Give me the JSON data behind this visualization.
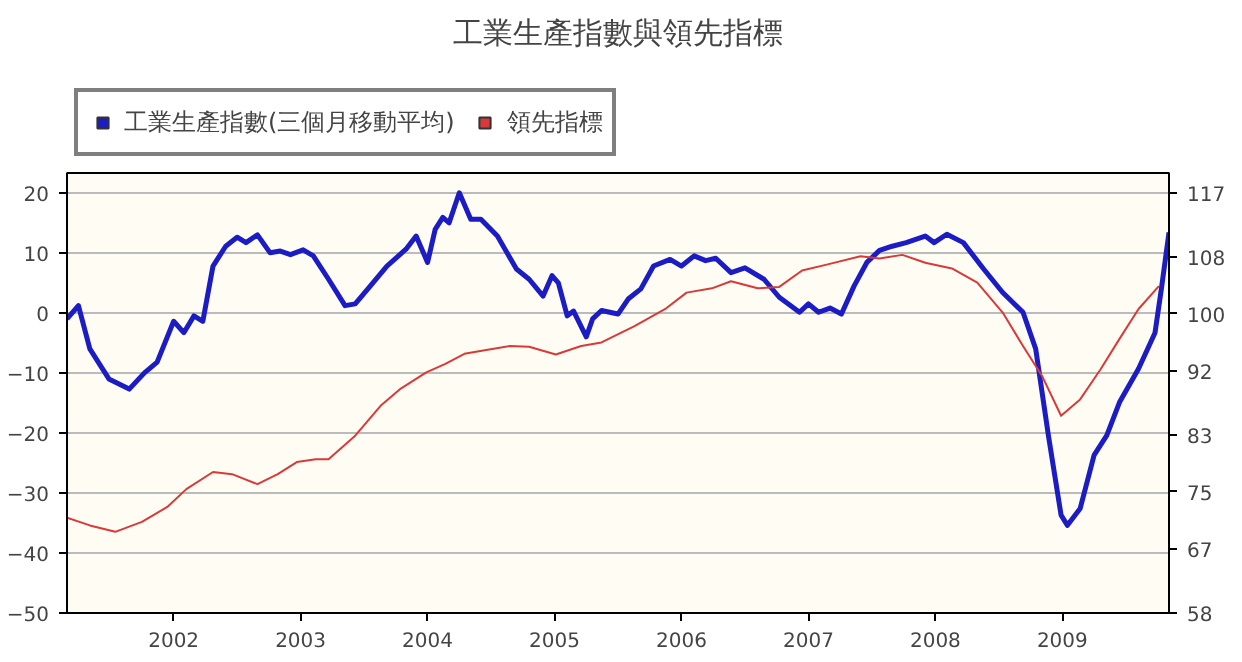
{
  "chart_data": {
    "type": "line",
    "title": "工業生產指數與領先指標",
    "xlim": [
      2001.16,
      2009.84
    ],
    "xticks": [
      2002,
      2003,
      2004,
      2005,
      2006,
      2007,
      2008,
      2009
    ],
    "ylim": [
      -50,
      23.3
    ],
    "yticks": [
      -50,
      -40,
      -30,
      -20,
      -10,
      0,
      10,
      20
    ],
    "y2lim": [
      58,
      119.8
    ],
    "y2ticks": [
      58,
      67,
      75,
      83,
      92,
      100,
      108,
      117
    ],
    "grid": "y",
    "legend": "top left",
    "line_style": "solid",
    "series": [
      {
        "name": "工業生產指數(三個月移動平均)",
        "color": "#1c1cc4",
        "x": [
          2001.16,
          2001.25,
          2001.34,
          2001.49,
          2001.65,
          2001.77,
          2001.87,
          2002.0,
          2002.08,
          2002.16,
          2002.23,
          2002.31,
          2002.41,
          2002.5,
          2002.57,
          2002.66,
          2002.76,
          2002.84,
          2002.92,
          2003.02,
          2003.1,
          2003.22,
          2003.35,
          2003.43,
          2003.53,
          2003.68,
          2003.83,
          2003.91,
          2004.0,
          2004.06,
          2004.12,
          2004.17,
          2004.25,
          2004.34,
          2004.42,
          2004.55,
          2004.7,
          2004.8,
          2004.91,
          2004.98,
          2005.03,
          2005.1,
          2005.15,
          2005.25,
          2005.3,
          2005.37,
          2005.5,
          2005.58,
          2005.68,
          2005.78,
          2005.91,
          2006.0,
          2006.1,
          2006.19,
          2006.27,
          2006.39,
          2006.5,
          2006.65,
          2006.77,
          2006.93,
          2007.0,
          2007.08,
          2007.17,
          2007.26,
          2007.36,
          2007.46,
          2007.56,
          2007.66,
          2007.77,
          2007.92,
          2007.99,
          2008.09,
          2008.22,
          2008.38,
          2008.53,
          2008.69,
          2008.79,
          2008.89,
          2008.99,
          2009.04,
          2009.14,
          2009.25,
          2009.35,
          2009.45,
          2009.6,
          2009.73,
          2009.78,
          2009.84
        ],
        "values": [
          -1,
          1.2,
          -6,
          -11,
          -12.7,
          -10,
          -8.2,
          -1.4,
          -3.3,
          -0.5,
          -1.4,
          7.8,
          11.1,
          12.6,
          11.7,
          13,
          10,
          10.3,
          9.7,
          10.5,
          9.5,
          5.6,
          1.2,
          1.5,
          4,
          7.8,
          10.6,
          12.8,
          8.4,
          13.9,
          15.9,
          15,
          20,
          15.6,
          15.6,
          12.8,
          7.3,
          5.6,
          2.8,
          6.2,
          5,
          -0.5,
          0.3,
          -4,
          -1,
          0.4,
          -0.2,
          2.3,
          4,
          7.8,
          8.9,
          7.8,
          9.5,
          8.7,
          9.1,
          6.7,
          7.5,
          5.6,
          2.6,
          0.1,
          1.5,
          0.1,
          0.8,
          -0.2,
          4.5,
          8.4,
          10.4,
          11.1,
          11.7,
          12.8,
          11.7,
          13.1,
          11.7,
          7.3,
          3.4,
          0.1,
          -6,
          -20.4,
          -33.7,
          -35.4,
          -32.6,
          -23.7,
          -20.4,
          -14.9,
          -9.3,
          -3.3,
          4,
          13.4
        ]
      },
      {
        "name": "領先指標",
        "color": "#d83a3a",
        "axis": "y2",
        "x": [
          2001.16,
          2001.34,
          2001.54,
          2001.75,
          2001.95,
          2002.1,
          2002.31,
          2002.46,
          2002.66,
          2002.82,
          2002.97,
          2003.12,
          2003.22,
          2003.43,
          2003.63,
          2003.78,
          2003.99,
          2004.14,
          2004.29,
          2004.45,
          2004.65,
          2004.8,
          2005.01,
          2005.21,
          2005.37,
          2005.63,
          2005.88,
          2006.04,
          2006.24,
          2006.39,
          2006.6,
          2006.77,
          2006.95,
          2007.16,
          2007.41,
          2007.56,
          2007.74,
          2007.92,
          2008.13,
          2008.33,
          2008.53,
          2008.69,
          2008.84,
          2008.99,
          2009.14,
          2009.3,
          2009.45,
          2009.6,
          2009.76
        ],
        "values": [
          71.4,
          70.3,
          69.4,
          70.8,
          72.9,
          75.4,
          77.8,
          77.5,
          76.1,
          77.5,
          79.2,
          79.6,
          79.6,
          82.9,
          87.1,
          89.4,
          91.8,
          93.0,
          94.4,
          94.9,
          95.5,
          95.4,
          94.3,
          95.5,
          96.0,
          98.3,
          100.8,
          103.0,
          103.6,
          104.6,
          103.6,
          103.8,
          106.1,
          107.0,
          108.1,
          107.8,
          108.3,
          107.2,
          106.4,
          104.4,
          100.2,
          95.5,
          91.3,
          85.7,
          88.0,
          92.2,
          96.5,
          100.7,
          103.9
        ]
      }
    ]
  }
}
